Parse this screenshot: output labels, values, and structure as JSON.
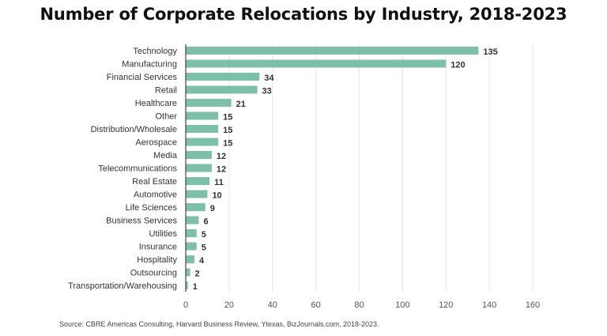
{
  "chart_data": {
    "type": "bar",
    "orientation": "horizontal",
    "title": "Number of Corporate Relocations by Industry, 2018-2023",
    "categories": [
      "Technology",
      "Manufacturing",
      "Financial Services",
      "Retail",
      "Healthcare",
      "Other",
      "Distribution/Wholesale",
      "Aerospace",
      "Media",
      "Telecommunications",
      "Real Estate",
      "Automotive",
      "Life Sciences",
      "Business Services",
      "Utilities",
      "Insurance",
      "Hospitality",
      "Outsourcing",
      "Transportation/Warehousing"
    ],
    "values": [
      135,
      120,
      34,
      33,
      21,
      15,
      15,
      15,
      12,
      12,
      11,
      10,
      9,
      6,
      5,
      5,
      4,
      2,
      1
    ],
    "xlim": [
      0,
      160
    ],
    "xticks": [
      0,
      20,
      40,
      60,
      80,
      100,
      120,
      140,
      160
    ],
    "grid": true,
    "bar_color": "#7dbfa8",
    "source": "Source: CBRE Americas Consulting, Harvard Business Review, Ytexas, BizJournals.com, 2018-2023."
  }
}
